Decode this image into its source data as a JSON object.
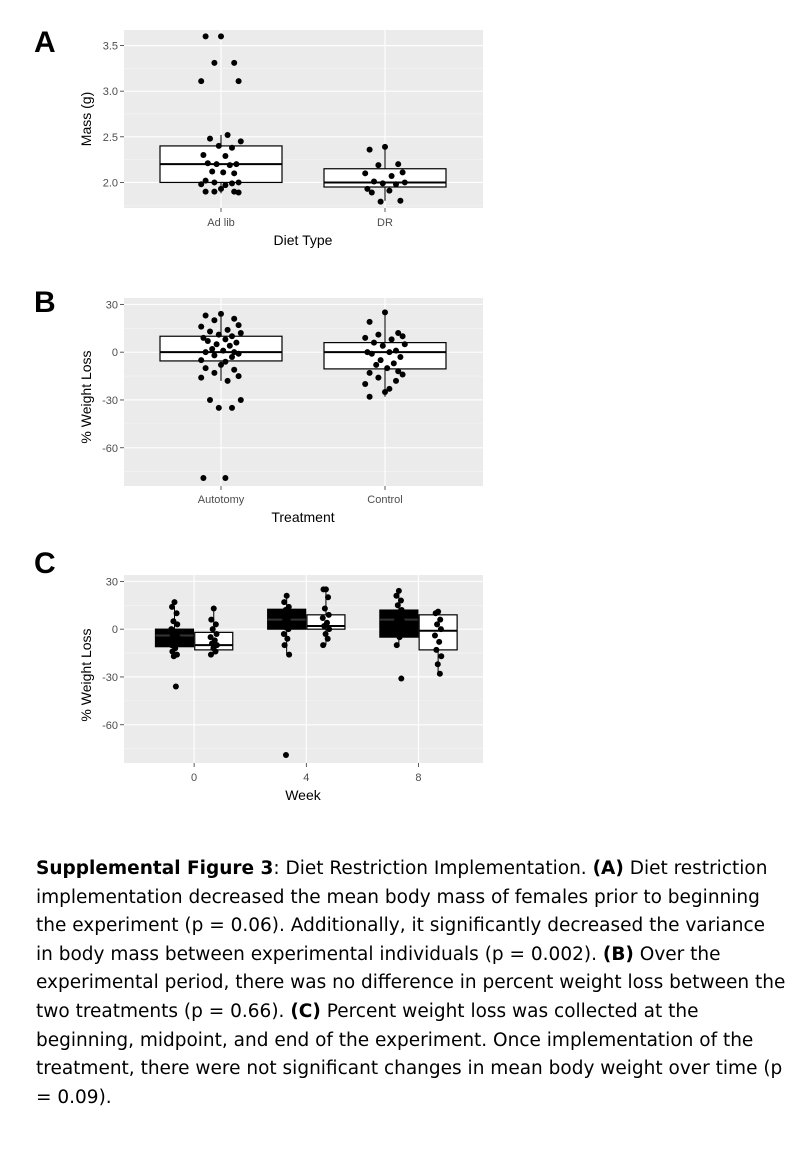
{
  "panels": [
    {
      "letter": "A",
      "chart_data": {
        "type": "box",
        "xlabel": "Diet Type",
        "ylabel": "Mass (g)",
        "ylim": [
          1.72,
          3.67
        ],
        "yticks": [
          2.0,
          2.5,
          3.0,
          3.5
        ],
        "ytick_labels": [
          "2.0",
          "2.5",
          "3.0",
          "3.5"
        ],
        "categories": [
          "Ad lib",
          "DR"
        ],
        "boxes": [
          {
            "category": "Ad lib",
            "q1": 2.0,
            "median": 2.2,
            "q3": 2.4,
            "whisker_low": 1.88,
            "whisker_high": 2.52
          },
          {
            "category": "DR",
            "q1": 1.95,
            "median": 2.0,
            "q3": 2.15,
            "whisker_low": 1.8,
            "whisker_high": 2.4
          }
        ],
        "points": [
          {
            "category": "Ad lib",
            "y": [
              3.6,
              3.6,
              3.31,
              3.31,
              3.11,
              3.11,
              2.52,
              2.48,
              2.45,
              2.4,
              2.38,
              2.3,
              2.29,
              2.21,
              2.2,
              2.2,
              2.19,
              2.12,
              2.11,
              2.1,
              2.02,
              2.0,
              2.0,
              1.99,
              1.98,
              1.97,
              1.93,
              1.9,
              1.9,
              1.9,
              1.89
            ]
          },
          {
            "category": "DR",
            "y": [
              2.39,
              2.36,
              2.2,
              2.19,
              2.11,
              2.1,
              2.07,
              2.01,
              2.0,
              1.99,
              1.98,
              1.93,
              1.91,
              1.89,
              1.8,
              1.79
            ]
          }
        ]
      }
    },
    {
      "letter": "B",
      "chart_data": {
        "type": "box",
        "xlabel": "Treatment",
        "ylabel": "% Weight Loss",
        "ylim": [
          -84,
          34
        ],
        "yticks": [
          -60,
          -30,
          0,
          30
        ],
        "ytick_labels": [
          "-60",
          "-30",
          "0",
          "30"
        ],
        "categories": [
          "Autotomy",
          "Control"
        ],
        "boxes": [
          {
            "category": "Autotomy",
            "q1": -5.5,
            "median": 0,
            "q3": 10,
            "whisker_low": -18,
            "whisker_high": 24
          },
          {
            "category": "Control",
            "q1": -10.5,
            "median": 0,
            "q3": 6,
            "whisker_low": -28,
            "whisker_high": 24
          }
        ],
        "points": [
          {
            "category": "Autotomy",
            "y": [
              24,
              23,
              21,
              20,
              17,
              16,
              14,
              13,
              12,
              11,
              10,
              9,
              8,
              7,
              6,
              5,
              4,
              2,
              1,
              0,
              0,
              -1,
              -2,
              -3,
              -5,
              -6,
              -8,
              -10,
              -11,
              -13,
              -15,
              -16,
              -18,
              -30,
              -30,
              -35,
              -35,
              -79,
              -79
            ]
          },
          {
            "category": "Control",
            "y": [
              25,
              19,
              12,
              11,
              10,
              9,
              8,
              6,
              5,
              4,
              1,
              0,
              0,
              -1,
              -3,
              -5,
              -7,
              -8,
              -10,
              -12,
              -13,
              -14,
              -16,
              -18,
              -20,
              -23,
              -25,
              -28
            ]
          }
        ]
      }
    },
    {
      "letter": "C",
      "chart_data": {
        "type": "box",
        "xlabel": "Week",
        "ylabel": "% Weight Loss",
        "ylim": [
          -84,
          34
        ],
        "yticks": [
          -60,
          -30,
          0,
          30
        ],
        "ytick_labels": [
          "-60",
          "-30",
          "0",
          "30"
        ],
        "x_ticks": [
          0,
          4,
          8
        ],
        "x_tick_labels": [
          "0",
          "4",
          "8"
        ],
        "xlim": [
          -2.5,
          10.3
        ],
        "series": [
          {
            "fill": "#000000",
            "offset": -0.7
          },
          {
            "fill": "#ffffff",
            "offset": 0.7
          }
        ],
        "boxes": [
          {
            "week": 0,
            "series": 0,
            "q1": -11,
            "median": -4,
            "q3": 0,
            "whisker_low": -17,
            "whisker_high": 14
          },
          {
            "week": 0,
            "series": 1,
            "q1": -13,
            "median": -10,
            "q3": -2,
            "whisker_low": -16,
            "whisker_high": 13
          },
          {
            "week": 4,
            "series": 0,
            "q1": 0,
            "median": 6,
            "q3": 12.5,
            "whisker_low": -16,
            "whisker_high": 21
          },
          {
            "week": 4,
            "series": 1,
            "q1": 0,
            "median": 2,
            "q3": 9,
            "whisker_low": -10,
            "whisker_high": 25
          },
          {
            "week": 8,
            "series": 0,
            "q1": -5,
            "median": 6,
            "q3": 12,
            "whisker_low": -10,
            "whisker_high": 24
          },
          {
            "week": 8,
            "series": 1,
            "q1": -13,
            "median": -1,
            "q3": 9,
            "whisker_low": -28,
            "whisker_high": 11
          }
        ],
        "points": [
          {
            "week": 0,
            "series": 0,
            "y": [
              17,
              14,
              10,
              5,
              3,
              0,
              -2,
              -4,
              -5,
              -7,
              -9,
              -10,
              -12,
              -14,
              -16,
              -17,
              -36
            ]
          },
          {
            "week": 0,
            "series": 1,
            "y": [
              13,
              6,
              3,
              0,
              -3,
              -5,
              -7,
              -9,
              -10,
              -12,
              -14,
              -16
            ]
          },
          {
            "week": 4,
            "series": 0,
            "y": [
              21,
              17,
              14,
              12,
              10,
              8,
              6,
              5,
              3,
              1,
              0,
              -3,
              -6,
              -10,
              -16,
              -79
            ]
          },
          {
            "week": 4,
            "series": 1,
            "y": [
              25,
              25,
              20,
              13,
              9,
              7,
              4,
              2,
              0,
              -3,
              -6,
              -10
            ]
          },
          {
            "week": 8,
            "series": 0,
            "y": [
              24,
              21,
              18,
              15,
              12,
              10,
              8,
              6,
              5,
              3,
              0,
              -3,
              -5,
              -10,
              -31
            ]
          },
          {
            "week": 8,
            "series": 1,
            "y": [
              11,
              10,
              6,
              3,
              0,
              -4,
              -8,
              -13,
              -17,
              -22,
              -28
            ]
          }
        ]
      }
    }
  ],
  "caption": {
    "label": "Supplemental Figure 3",
    "title_rest": ": Diet Restriction Implementation. ",
    "a_label": "(A)",
    "a_text": " Diet restriction implementation decreased the mean body mass of females prior to beginning the experiment (p = 0.06). Additionally, it significantly decreased the variance in body mass between experimental individuals (p = 0.002). ",
    "b_label": "(B)",
    "b_text": " Over the experimental period, there was no difference in percent weight loss between the two treatments (p = 0.66). ",
    "c_label": "(C)",
    "c_text": " Percent weight loss was collected at the beginning, midpoint, and end of the experiment. Once implementation of the treatment, there were not significant changes in mean body weight over time (p = 0.09)."
  }
}
